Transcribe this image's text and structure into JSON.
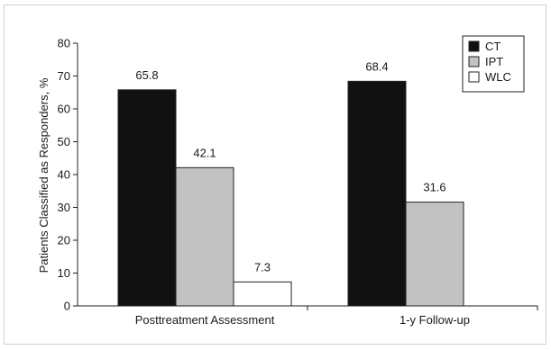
{
  "chart_data": {
    "type": "bar",
    "title": "",
    "xlabel": "",
    "ylabel": "Patients Classified as Responders, %",
    "ylim": [
      0,
      80
    ],
    "yticks": [
      0,
      10,
      20,
      30,
      40,
      50,
      60,
      70,
      80
    ],
    "categories": [
      "Posttreatment Assessment",
      "1-y Follow-up"
    ],
    "series": [
      {
        "name": "CT",
        "color": "#111111",
        "values": [
          65.8,
          68.4
        ],
        "labels": [
          "65.8",
          "68.4"
        ]
      },
      {
        "name": "IPT",
        "color": "#c2c2c2",
        "values": [
          42.1,
          31.6
        ],
        "labels": [
          "42.1",
          "31.6"
        ]
      },
      {
        "name": "WLC",
        "color": "#ffffff",
        "values": [
          7.3,
          null
        ],
        "labels": [
          "7.3",
          ""
        ]
      }
    ],
    "legend_position": "top-right",
    "grid": false
  }
}
